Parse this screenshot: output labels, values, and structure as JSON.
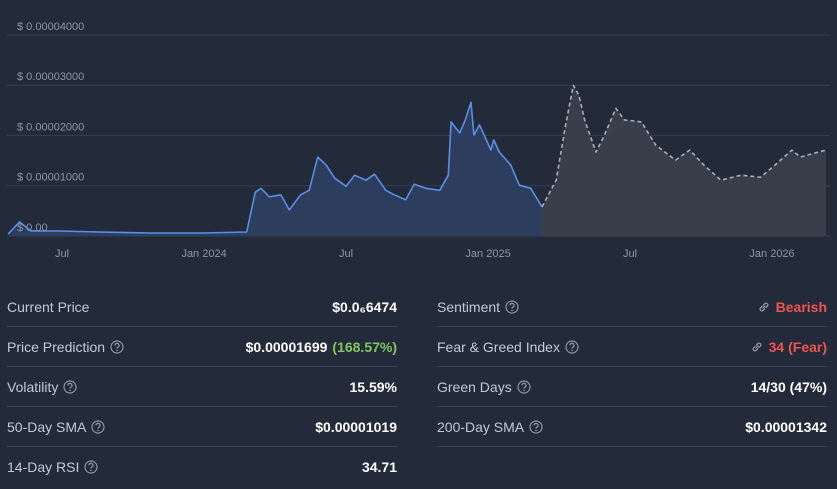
{
  "chart_data": {
    "type": "line",
    "xlim": [
      2023.306,
      2026.19
    ],
    "xticks": [
      {
        "value": 2023.5,
        "label": "Jul"
      },
      {
        "value": 2024,
        "label": "Jan 2024"
      },
      {
        "value": 2024.5,
        "label": "Jul"
      },
      {
        "value": 2025,
        "label": "Jan 2025"
      },
      {
        "value": 2025.5,
        "label": "Jul"
      },
      {
        "value": 2026,
        "label": "Jan 2026"
      }
    ],
    "ylim": [
      0,
      4e-05
    ],
    "yticks": [
      {
        "value": 0,
        "label": "$ 0.00"
      },
      {
        "value": 1e-05,
        "label": "$ 0.00001000"
      },
      {
        "value": 2e-05,
        "label": "$ 0.00002000"
      },
      {
        "value": 3e-05,
        "label": "$ 0.00003000"
      },
      {
        "value": 4e-05,
        "label": "$ 0.00004000"
      }
    ],
    "grid": true,
    "series": [
      {
        "color": "#5b8ee6",
        "fill_color": "#2c3d5e",
        "dashed": false,
        "x": [
          2023.31,
          2023.35,
          2023.39,
          2023.49,
          2023.63,
          2023.81,
          2023.99,
          2024.15,
          2024.18,
          2024.2,
          2024.23,
          2024.27,
          2024.3,
          2024.34,
          2024.37,
          2024.4,
          2024.43,
          2024.46,
          2024.5,
          2024.53,
          2024.57,
          2024.6,
          2024.64,
          2024.67,
          2024.71,
          2024.74,
          2024.78,
          2024.83,
          2024.86,
          2024.87,
          2024.9,
          2024.92,
          2024.94,
          2024.95,
          2024.97,
          2025.01,
          2025.02,
          2025.04,
          2025.08,
          2025.11,
          2025.15,
          2025.19
        ],
        "values": [
          4e-07,
          2.8e-06,
          1e-06,
          1e-06,
          8e-07,
          6e-07,
          6e-07,
          8e-07,
          8.7e-06,
          9.5e-06,
          7.8e-06,
          8.2e-06,
          5.2e-06,
          8.2e-06,
          9.1e-06,
          1.57e-05,
          1.41e-05,
          1.15e-05,
          9.9e-06,
          1.21e-05,
          1.11e-05,
          1.23e-05,
          9.1e-06,
          8.2e-06,
          7.2e-06,
          1.03e-05,
          9.5e-06,
          9.1e-06,
          1.21e-05,
          2.27e-05,
          2.05e-05,
          2.31e-05,
          2.66e-05,
          2.01e-05,
          2.21e-05,
          1.71e-05,
          1.91e-05,
          1.67e-05,
          1.41e-05,
          1.01e-05,
          9.5e-06,
          5.8e-06
        ]
      },
      {
        "color": "#a8adb6",
        "fill_color": "#383e4a",
        "dashed": true,
        "x": [
          2025.19,
          2025.24,
          2025.27,
          2025.3,
          2025.32,
          2025.34,
          2025.38,
          2025.41,
          2025.45,
          2025.48,
          2025.54,
          2025.59,
          2025.66,
          2025.71,
          2025.76,
          2025.82,
          2025.89,
          2025.96,
          2026.01,
          2026.07,
          2026.1,
          2026.15,
          2026.19
        ],
        "values": [
          5.8e-06,
          1.11e-05,
          2.11e-05,
          3e-05,
          2.8e-05,
          2.31e-05,
          1.67e-05,
          2.01e-05,
          2.54e-05,
          2.31e-05,
          2.27e-05,
          1.81e-05,
          1.51e-05,
          1.71e-05,
          1.41e-05,
          1.11e-05,
          1.21e-05,
          1.17e-05,
          1.41e-05,
          1.71e-05,
          1.57e-05,
          1.65e-05,
          1.71e-05
        ]
      }
    ]
  },
  "stats": {
    "left": [
      {
        "label": "Current Price",
        "value": "$0.0₆6474"
      },
      {
        "label": "Price Prediction",
        "value": "$0.00001699",
        "change": "(168.57%)"
      },
      {
        "label": "Volatility",
        "value": "15.59%"
      },
      {
        "label": "50-Day SMA",
        "value": "$0.00001019"
      },
      {
        "label": "14-Day RSI",
        "value": "34.71"
      }
    ],
    "right": [
      {
        "label": "Sentiment",
        "value": "Bearish"
      },
      {
        "label": "Fear & Greed Index",
        "value": "34 (Fear)"
      },
      {
        "label": "Green Days",
        "value": "14/30 (47%)"
      },
      {
        "label": "200-Day SMA",
        "value": "$0.00001342"
      }
    ]
  }
}
